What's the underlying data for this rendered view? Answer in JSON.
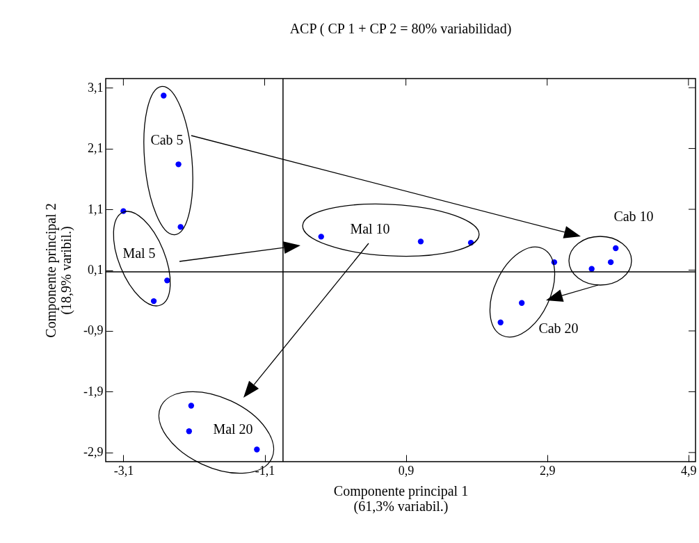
{
  "chart_data": {
    "type": "scatter",
    "title": "ACP ( CP 1 + CP 2 = 80% variabilidad)",
    "xlabel": "Componente principal 1\n(61,3% variabil.)",
    "ylabel": "Componente principal 2\n(18,9% varibil.)",
    "x": [
      -2.53,
      -2.32,
      -2.29,
      -3.1,
      -2.48,
      -2.67,
      -0.3,
      1.11,
      1.82,
      3.0,
      3.87,
      3.8,
      3.53,
      2.54,
      2.24,
      -2.14,
      -2.17,
      -1.21
    ],
    "series": [
      {
        "color": "#0000ff",
        "values": [
          2.97,
          1.84,
          0.81,
          1.07,
          -0.07,
          -0.41,
          0.65,
          0.57,
          0.55,
          0.23,
          0.46,
          0.23,
          0.12,
          -0.44,
          -0.76,
          -2.13,
          -2.55,
          -2.85
        ]
      }
    ],
    "xlim": [
      -3.35,
      5.0
    ],
    "ylim": [
      -3.05,
      3.25
    ],
    "xticks": [
      {
        "value": -3.1,
        "label": "-3,1"
      },
      {
        "value": -1.1,
        "label": "-1,1"
      },
      {
        "value": 0.9,
        "label": "0,9"
      },
      {
        "value": 2.9,
        "label": "2,9"
      },
      {
        "value": 4.9,
        "label": "4,9"
      }
    ],
    "yticks": [
      {
        "value": 3.1,
        "label": "3,1"
      },
      {
        "value": 2.1,
        "label": "2,1"
      },
      {
        "value": 1.1,
        "label": "1,1"
      },
      {
        "value": 0.1,
        "label": "0,1"
      },
      {
        "value": -0.9,
        "label": "-0,9"
      },
      {
        "value": -1.9,
        "label": "-1,9"
      },
      {
        "value": -2.9,
        "label": "-2,9"
      }
    ],
    "marker": "circle",
    "grid": false,
    "ref_lines": [
      {
        "axis": "x",
        "value": -0.84,
        "color": "#000000"
      },
      {
        "axis": "y",
        "value": 0.07,
        "color": "#000000"
      }
    ],
    "annotations": [
      "Cab 5",
      "Mal 5",
      "Mal 10",
      "Cab 10",
      "Cab 20",
      "Mal 20"
    ]
  }
}
